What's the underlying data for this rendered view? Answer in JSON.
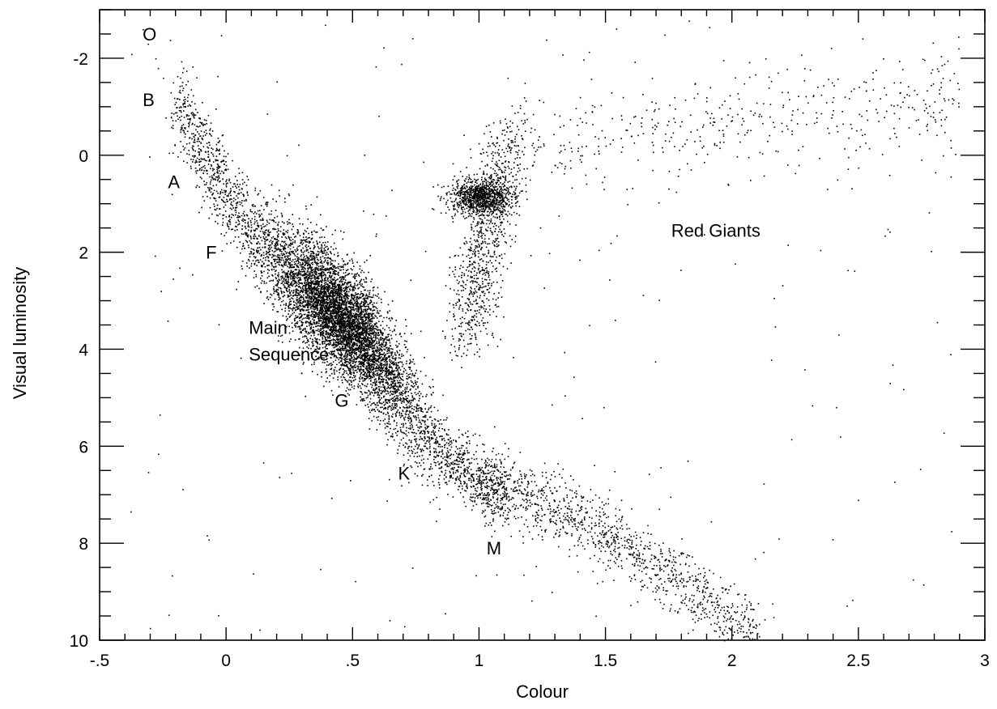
{
  "chart_data": {
    "type": "scatter",
    "title": "",
    "xlabel": "Colour",
    "ylabel": "Visual luminosity",
    "xlim": [
      -0.5,
      3.0
    ],
    "ylim": [
      10,
      -3
    ],
    "y_inverted": true,
    "grid": false,
    "legend": "none",
    "x_ticks": [
      {
        "value": -0.5,
        "label": "-.5"
      },
      {
        "value": 0,
        "label": "0"
      },
      {
        "value": 0.5,
        "label": ".5"
      },
      {
        "value": 1,
        "label": "1"
      },
      {
        "value": 1.5,
        "label": "1.5"
      },
      {
        "value": 2,
        "label": "2"
      },
      {
        "value": 2.5,
        "label": "2.5"
      },
      {
        "value": 3,
        "label": "3"
      }
    ],
    "y_ticks": [
      {
        "value": -2,
        "label": "-2"
      },
      {
        "value": 0,
        "label": "0"
      },
      {
        "value": 2,
        "label": "2"
      },
      {
        "value": 4,
        "label": "4"
      },
      {
        "value": 6,
        "label": "6"
      },
      {
        "value": 8,
        "label": "8"
      },
      {
        "value": 10,
        "label": "10"
      }
    ],
    "annotations": [
      {
        "text": "O",
        "x": -0.33,
        "y": -2.5
      },
      {
        "text": "B",
        "x": -0.33,
        "y": -1.15
      },
      {
        "text": "A",
        "x": -0.23,
        "y": 0.55
      },
      {
        "text": "F",
        "x": -0.08,
        "y": 2.0
      },
      {
        "text": "Main",
        "x": 0.09,
        "y": 3.55
      },
      {
        "text": "Sequence",
        "x": 0.09,
        "y": 4.1
      },
      {
        "text": "G",
        "x": 0.43,
        "y": 5.05
      },
      {
        "text": "K",
        "x": 0.68,
        "y": 6.55
      },
      {
        "text": "M",
        "x": 1.03,
        "y": 8.1
      },
      {
        "text": "Red Giants",
        "x": 1.76,
        "y": 1.55
      }
    ],
    "point_color": "#000000",
    "series": [
      {
        "name": "",
        "points": [
          [
            -0.33,
            -2.6
          ],
          [
            -0.31,
            -2.3
          ],
          [
            -0.28,
            -2.0
          ],
          [
            -0.27,
            -1.8
          ],
          [
            -0.25,
            -1.6
          ],
          [
            -0.22,
            -1.3
          ],
          [
            -0.2,
            -1.1
          ],
          [
            -0.18,
            -0.9
          ],
          [
            -0.15,
            -0.6
          ],
          [
            -0.13,
            -0.4
          ],
          [
            -0.1,
            -0.1
          ],
          [
            -0.08,
            0.1
          ],
          [
            -0.05,
            0.4
          ],
          [
            -0.02,
            0.7
          ],
          [
            0.0,
            0.9
          ],
          [
            0.02,
            1.1
          ],
          [
            0.05,
            1.4
          ],
          [
            0.08,
            1.6
          ],
          [
            0.12,
            1.8
          ],
          [
            0.16,
            2.0
          ],
          [
            0.2,
            2.2
          ],
          [
            0.25,
            2.45
          ],
          [
            0.3,
            2.7
          ],
          [
            0.35,
            2.95
          ],
          [
            0.4,
            3.2
          ],
          [
            0.45,
            3.45
          ],
          [
            0.5,
            3.65
          ],
          [
            0.55,
            3.9
          ],
          [
            0.6,
            4.2
          ],
          [
            0.65,
            4.6
          ],
          [
            0.7,
            5.0
          ],
          [
            0.75,
            5.4
          ],
          [
            0.8,
            5.8
          ],
          [
            0.85,
            6.1
          ],
          [
            0.9,
            6.35
          ],
          [
            0.95,
            6.55
          ],
          [
            1.0,
            6.7
          ],
          [
            1.1,
            6.95
          ],
          [
            1.2,
            7.15
          ],
          [
            1.3,
            7.35
          ],
          [
            1.4,
            7.55
          ],
          [
            1.5,
            7.8
          ],
          [
            1.6,
            8.1
          ],
          [
            1.7,
            8.45
          ],
          [
            1.8,
            8.8
          ],
          [
            1.9,
            9.2
          ],
          [
            2.0,
            9.55
          ],
          [
            2.1,
            9.85
          ],
          [
            0.95,
            0.75
          ],
          [
            1.0,
            0.8
          ],
          [
            1.05,
            0.85
          ],
          [
            0.98,
            0.6
          ],
          [
            1.02,
            1.0
          ],
          [
            1.1,
            1.05
          ],
          [
            0.93,
            0.9
          ],
          [
            1.07,
            0.7
          ],
          [
            1.2,
            0.5
          ],
          [
            1.3,
            0.2
          ],
          [
            1.4,
            0.0
          ],
          [
            1.5,
            -0.2
          ],
          [
            1.6,
            -0.4
          ],
          [
            1.7,
            -0.6
          ],
          [
            1.8,
            -0.7
          ],
          [
            2.0,
            -0.8
          ],
          [
            2.2,
            -1.0
          ],
          [
            2.4,
            -1.2
          ],
          [
            2.6,
            -1.4
          ],
          [
            2.84,
            -0.75
          ],
          [
            0.95,
            1.8
          ],
          [
            0.92,
            2.6
          ],
          [
            0.9,
            3.3
          ],
          [
            1.1,
            1.6
          ]
        ]
      }
    ]
  }
}
